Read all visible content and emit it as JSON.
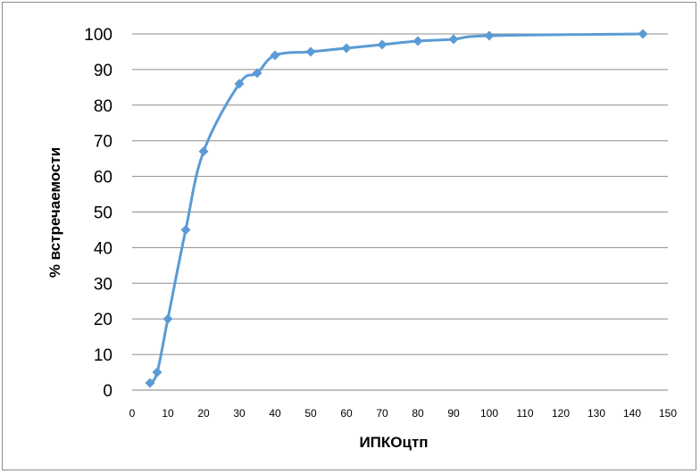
{
  "chart_data": {
    "type": "line",
    "title": "",
    "xlabel": "ИПКОцтп",
    "ylabel": "% встречаемости",
    "xlim": [
      0,
      150
    ],
    "ylim": [
      0,
      100
    ],
    "xticks": [
      "0",
      "10",
      "20",
      "30",
      "40",
      "50",
      "60",
      "70",
      "80",
      "90",
      "100",
      "110",
      "120",
      "130",
      "140",
      "150"
    ],
    "yticks": [
      "0",
      "10",
      "20",
      "30",
      "40",
      "50",
      "60",
      "70",
      "80",
      "90",
      "100"
    ],
    "grid": "horizontal",
    "legend": "none",
    "line_color": "#5B9BD5",
    "series": [
      {
        "x": [
          5,
          7,
          10,
          15,
          20,
          30,
          35,
          40,
          50,
          60,
          70,
          80,
          90,
          100,
          143
        ],
        "y": [
          2,
          5,
          20,
          45,
          67,
          86,
          89,
          94,
          95,
          96,
          97,
          98,
          98.5,
          99.5,
          100
        ]
      }
    ]
  }
}
